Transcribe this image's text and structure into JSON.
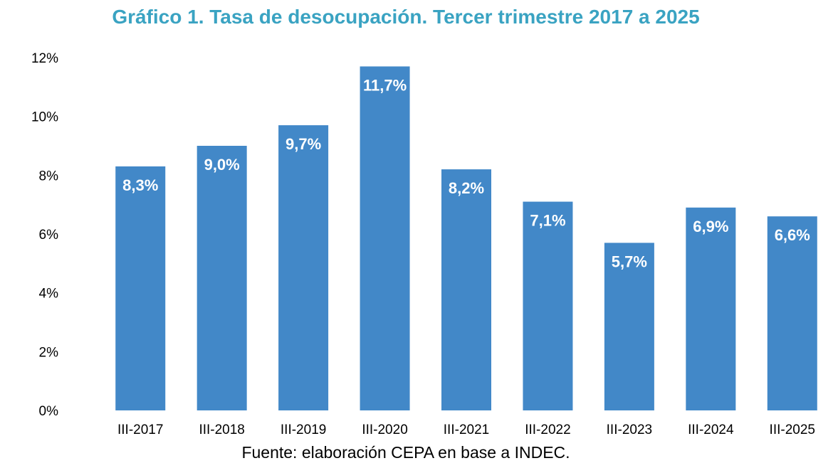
{
  "chart_data": {
    "type": "bar",
    "title": "Gráfico 1. Tasa de desocupación. Tercer trimestre 2017 a 2025",
    "source": "Fuente: elaboración CEPA en base a INDEC.",
    "categories": [
      "III-2017",
      "III-2018",
      "III-2019",
      "III-2020",
      "III-2021",
      "III-2022",
      "III-2023",
      "III-2024",
      "III-2025"
    ],
    "values": [
      8.3,
      9.0,
      9.7,
      11.7,
      8.2,
      7.1,
      5.7,
      6.9,
      6.6
    ],
    "data_labels": [
      "8,3%",
      "9,0%",
      "9,7%",
      "11,7%",
      "8,2%",
      "7,1%",
      "5,7%",
      "6,9%",
      "6,6%"
    ],
    "ylim": [
      0,
      12
    ],
    "yticks": [
      0,
      2,
      4,
      6,
      8,
      10,
      12
    ],
    "ytick_labels": [
      "0%",
      "2%",
      "4%",
      "6%",
      "8%",
      "10%",
      "12%"
    ],
    "xlabel": "",
    "ylabel": "",
    "grid": false,
    "legend": "none",
    "bar_color": "#4288c8",
    "title_color": "#3aa3c2"
  }
}
